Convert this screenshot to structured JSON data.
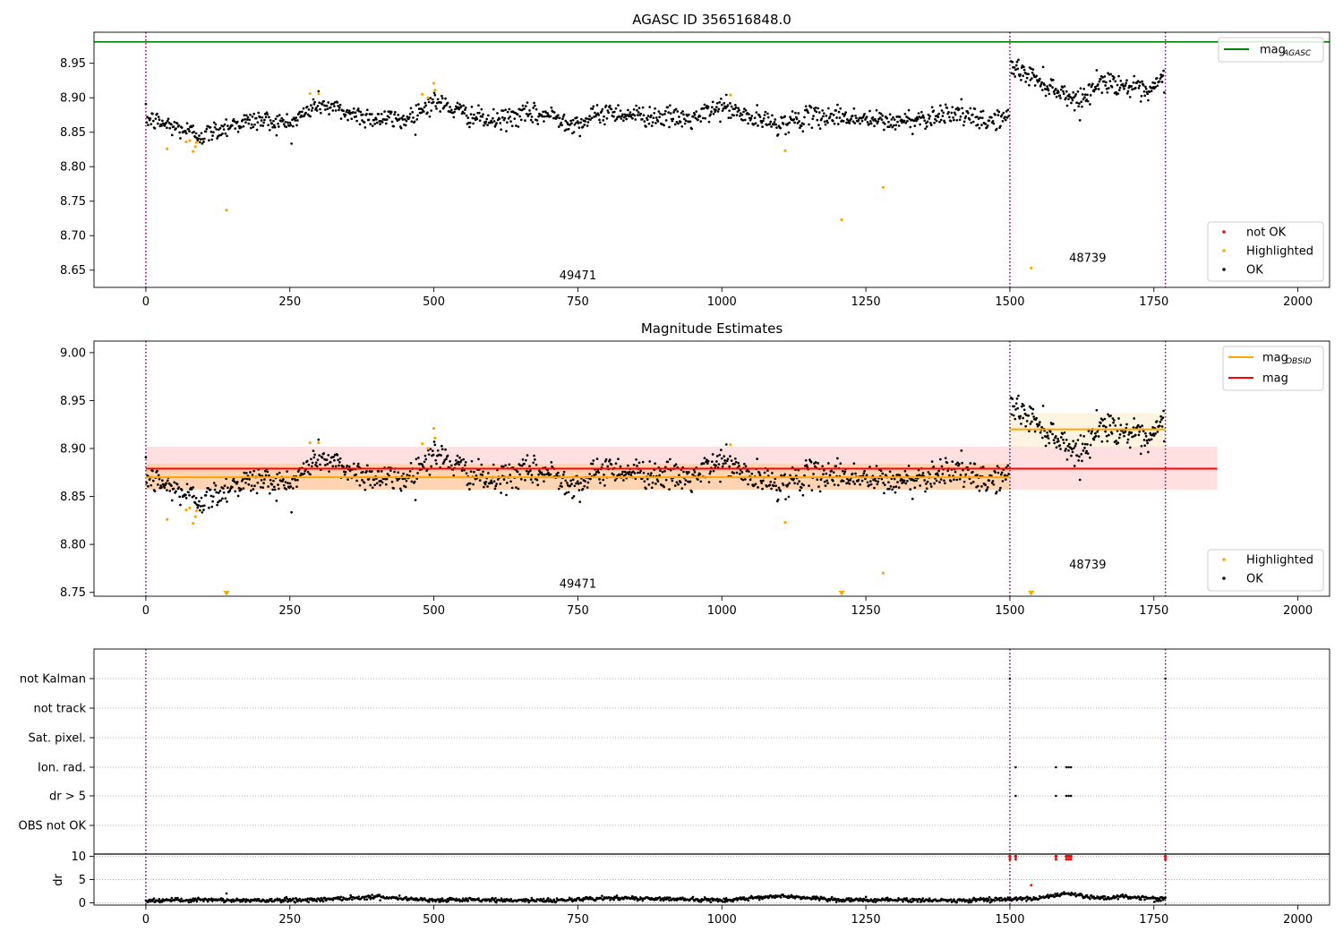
{
  "figure": {
    "background": "#ffffff"
  },
  "chart_data": [
    {
      "type": "scatter",
      "title": "AGASC ID 356516848.0",
      "xlim": [
        -90,
        2055
      ],
      "ylim": [
        8.625,
        8.995
      ],
      "xticks": [
        0,
        250,
        500,
        750,
        1000,
        1250,
        1500,
        1750,
        2000
      ],
      "xtick_labels": [
        "0",
        "250",
        "500",
        "750",
        "1000",
        "1250",
        "1500",
        "1750",
        "2000"
      ],
      "yticks": [
        8.65,
        8.7,
        8.75,
        8.8,
        8.85,
        8.9,
        8.95
      ],
      "ytick_labels": [
        "8.65",
        "8.70",
        "8.75",
        "8.80",
        "8.85",
        "8.90",
        "8.95"
      ],
      "grid": false,
      "vlines": {
        "x": [
          0,
          1500,
          1770
        ],
        "color": "#800080",
        "style": "dotted"
      },
      "obsid_labels": [
        {
          "text": "49471",
          "x": 750,
          "y": 8.637
        },
        {
          "text": "48739",
          "x": 1635,
          "y": 8.662
        }
      ],
      "hlines": [
        {
          "name": "mag_AGASC",
          "y": 8.981,
          "color": "#008000"
        }
      ],
      "legend_line": {
        "position": "top-right",
        "label_main": "mag",
        "label_sub": "AGASC",
        "color": "#008000"
      },
      "legend_points": {
        "position": "bottom-right",
        "entries": [
          {
            "label": "not OK",
            "color": "#ff0000"
          },
          {
            "label": "Highlighted",
            "color": "#ffa500"
          },
          {
            "label": "OK",
            "color": "#000000"
          }
        ]
      },
      "series": [
        {
          "name": "OK",
          "color": "#000000",
          "segments": [
            {
              "x": [
                0,
                60,
                100,
                150,
                200,
                250,
                300,
                350,
                400,
                450,
                500,
                550,
                600,
                650,
                700,
                750,
                800,
                850,
                900,
                950,
                1000,
                1050,
                1100,
                1150,
                1200,
                1250,
                1300,
                1350,
                1400,
                1450,
                1498
              ],
              "y": [
                8.87,
                8.855,
                8.845,
                8.862,
                8.868,
                8.862,
                8.892,
                8.878,
                8.87,
                8.868,
                8.895,
                8.878,
                8.865,
                8.875,
                8.875,
                8.862,
                8.88,
                8.875,
                8.872,
                8.868,
                8.888,
                8.87,
                8.862,
                8.872,
                8.874,
                8.868,
                8.865,
                8.87,
                8.88,
                8.865,
                8.872
              ],
              "n": 1150
            },
            {
              "x": [
                1502,
                1540,
                1580,
                1620,
                1660,
                1700,
                1740,
                1768
              ],
              "y": [
                8.945,
                8.93,
                8.912,
                8.895,
                8.925,
                8.918,
                8.905,
                8.93
              ],
              "n": 230
            }
          ]
        },
        {
          "name": "Highlighted",
          "color": "#ffa500",
          "x": [
            37,
            70,
            76,
            82,
            86,
            88,
            140,
            285,
            300,
            480,
            490,
            500,
            502,
            1015,
            1110,
            1208,
            1280,
            1537
          ],
          "y": [
            8.826,
            8.836,
            8.838,
            8.822,
            8.829,
            8.835,
            8.737,
            8.906,
            8.906,
            8.905,
            8.9,
            8.921,
            8.911,
            8.904,
            8.823,
            8.723,
            8.77,
            8.653
          ]
        },
        {
          "name": "not OK",
          "color": "#ff0000",
          "x": [],
          "y": []
        }
      ]
    },
    {
      "type": "scatter",
      "title": "Magnitude Estimates",
      "xlim": [
        -90,
        2055
      ],
      "ylim": [
        8.746,
        9.012
      ],
      "xticks": [
        0,
        250,
        500,
        750,
        1000,
        1250,
        1500,
        1750,
        2000
      ],
      "xtick_labels": [
        "0",
        "250",
        "500",
        "750",
        "1000",
        "1250",
        "1500",
        "1750",
        "2000"
      ],
      "yticks": [
        8.75,
        8.8,
        8.85,
        8.9,
        8.95,
        9.0
      ],
      "ytick_labels": [
        "8.75",
        "8.80",
        "8.85",
        "8.90",
        "8.95",
        "9.00"
      ],
      "grid": false,
      "vlines": {
        "x": [
          0,
          1500,
          1770
        ],
        "color": "#800080",
        "style": "dotted"
      },
      "obsid_labels": [
        {
          "text": "49471",
          "x": 750,
          "y": 8.755
        },
        {
          "text": "48739",
          "x": 1635,
          "y": 8.775
        }
      ],
      "bands": [
        {
          "name": "mag",
          "x": [
            0,
            1860
          ],
          "y": [
            8.857,
            8.902
          ],
          "color": "#ff0000",
          "alpha": 0.12
        },
        {
          "name": "mag_OBSID 49471",
          "x": [
            0,
            1500
          ],
          "y": [
            8.857,
            8.884
          ],
          "color": "#ffa500",
          "alpha": 0.2
        },
        {
          "name": "mag_OBSID 48739",
          "x": [
            1500,
            1770
          ],
          "y": [
            8.902,
            8.937
          ],
          "color": "#ffa500",
          "alpha": 0.12
        }
      ],
      "lines": [
        {
          "name": "mag",
          "x": [
            0,
            1860
          ],
          "y": [
            8.879,
            8.879
          ],
          "color": "#ff0000"
        },
        {
          "name": "mag_OBSID 49471",
          "x": [
            0,
            1500
          ],
          "y": [
            8.87,
            8.87
          ],
          "color": "#ffa500"
        },
        {
          "name": "mag_OBSID 48739",
          "x": [
            1500,
            1770
          ],
          "y": [
            8.92,
            8.92
          ],
          "color": "#ffa500"
        }
      ],
      "legend_lines": {
        "position": "top-right",
        "entries": [
          {
            "label_main": "mag",
            "label_sub": "OBSID",
            "color": "#ffa500"
          },
          {
            "label_main": "mag",
            "label_sub": "",
            "color": "#ff0000"
          }
        ]
      },
      "legend_points": {
        "position": "bottom-right",
        "entries": [
          {
            "label": "Highlighted",
            "color": "#ffa500"
          },
          {
            "label": "OK",
            "color": "#000000"
          }
        ]
      },
      "series": [
        {
          "name": "OK",
          "color": "#000000",
          "segments": [
            {
              "x": [
                0,
                60,
                100,
                150,
                200,
                250,
                300,
                350,
                400,
                450,
                500,
                550,
                600,
                650,
                700,
                750,
                800,
                850,
                900,
                950,
                1000,
                1050,
                1100,
                1150,
                1200,
                1250,
                1300,
                1350,
                1400,
                1450,
                1498
              ],
              "y": [
                8.87,
                8.855,
                8.845,
                8.862,
                8.868,
                8.862,
                8.892,
                8.878,
                8.87,
                8.868,
                8.895,
                8.878,
                8.865,
                8.875,
                8.875,
                8.862,
                8.88,
                8.875,
                8.872,
                8.868,
                8.888,
                8.87,
                8.862,
                8.872,
                8.874,
                8.868,
                8.865,
                8.87,
                8.88,
                8.865,
                8.872
              ],
              "n": 1150
            },
            {
              "x": [
                1502,
                1540,
                1580,
                1620,
                1660,
                1700,
                1740,
                1768
              ],
              "y": [
                8.945,
                8.93,
                8.912,
                8.895,
                8.925,
                8.918,
                8.905,
                8.93
              ],
              "n": 230
            }
          ]
        },
        {
          "name": "Highlighted",
          "color": "#ffa500",
          "x": [
            37,
            70,
            76,
            82,
            86,
            88,
            285,
            300,
            480,
            490,
            500,
            502,
            1015,
            1110,
            1280
          ],
          "y": [
            8.826,
            8.836,
            8.838,
            8.822,
            8.829,
            8.835,
            8.906,
            8.906,
            8.905,
            8.9,
            8.921,
            8.911,
            8.904,
            8.823,
            8.77
          ]
        },
        {
          "name": "Highlighted (below axis)",
          "marker": "triangle-down",
          "color": "#ffa500",
          "x": [
            140,
            1208,
            1537
          ],
          "y": [
            8.749,
            8.749,
            8.749
          ]
        }
      ]
    },
    {
      "type": "scatter",
      "title": "",
      "xlim": [
        -90,
        2055
      ],
      "flag_rows": [
        "not Kalman",
        "not track",
        "Sat. pixel.",
        "Ion. rad.",
        "dr > 5",
        "OBS not OK"
      ],
      "flag_points": [
        {
          "row": "not Kalman",
          "x": [
            1500,
            1770
          ]
        },
        {
          "row": "Ion. rad.",
          "x": [
            1510,
            1580,
            1598,
            1602,
            1606
          ]
        },
        {
          "row": "dr > 5",
          "x": [
            1510,
            1580,
            1598,
            1602,
            1606
          ]
        }
      ],
      "dr_panel": {
        "ylabel": "dr",
        "ylim": [
          -0.5,
          10.5
        ],
        "yticks": [
          0,
          5,
          10
        ],
        "ytick_labels": [
          "0",
          "5",
          "10"
        ],
        "ok_x": [
          0,
          100,
          200,
          300,
          400,
          500,
          600,
          700,
          800,
          900,
          1000,
          1100,
          1200,
          1300,
          1400,
          1500,
          1550,
          1600,
          1650,
          1700,
          1770
        ],
        "ok_y": [
          0.5,
          0.6,
          0.5,
          0.7,
          1.3,
          0.6,
          0.6,
          0.5,
          1.0,
          0.9,
          0.5,
          1.5,
          0.6,
          0.6,
          0.5,
          0.8,
          0.9,
          2.0,
          1.0,
          1.3,
          0.8
        ],
        "ok_n": 1380,
        "ok_extra": {
          "x": [
            140
          ],
          "y": [
            2.0
          ]
        },
        "notok_x": [
          1500,
          1510,
          1580,
          1598,
          1602,
          1606,
          1770
        ],
        "notok_y": [
          10,
          10,
          10,
          10,
          10,
          10,
          10
        ],
        "notok_color": "#ff0000",
        "highlight_x": [
          1537
        ],
        "highlight_y": [
          3.8
        ]
      },
      "xticks": [
        0,
        250,
        500,
        750,
        1000,
        1250,
        1500,
        1750,
        2000
      ],
      "xtick_labels": [
        "0",
        "250",
        "500",
        "750",
        "1000",
        "1250",
        "1500",
        "1750",
        "2000"
      ],
      "vlines": {
        "x": [
          0,
          1500,
          1770
        ],
        "color": "#800080",
        "style": "dotted"
      }
    }
  ]
}
